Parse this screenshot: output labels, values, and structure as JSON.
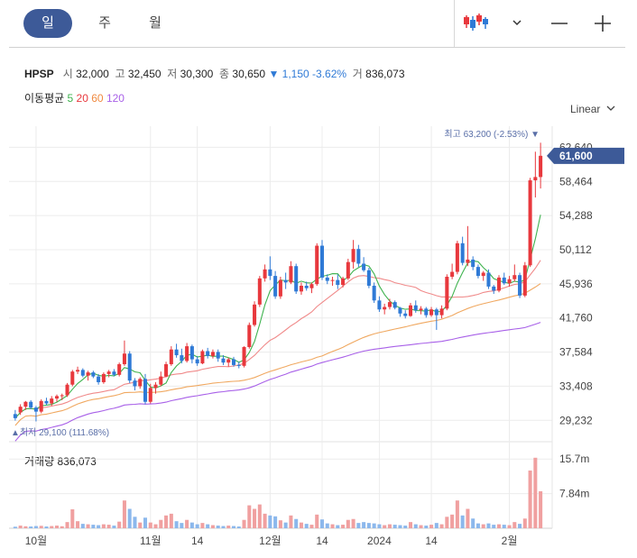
{
  "tabs": {
    "day": "일",
    "week": "주",
    "month": "월"
  },
  "toolbar": {
    "chart_type_icon": "candlestick-icon",
    "dropdown_icon": "chevron-down-icon",
    "zoom_out": "−",
    "zoom_in": "+"
  },
  "quote": {
    "symbol": "HPSP",
    "open_label": "시",
    "open": "32,000",
    "high_label": "고",
    "high": "32,450",
    "low_label": "저",
    "low": "30,300",
    "close_label": "종",
    "close": "30,650",
    "change_arrow": "▼",
    "change": "1,150",
    "change_pct": "-3.62%",
    "volume_label": "거",
    "volume": "836,073"
  },
  "moving_average": {
    "label": "이동평균",
    "p5": "5",
    "p20": "20",
    "p60": "60",
    "p120": "120"
  },
  "scale_mode": "Linear",
  "colors": {
    "up": "#e8383d",
    "down": "#2f7ad6",
    "ma5": "#3fb34f",
    "ma20": "#f08a8a",
    "ma60": "#f0a860",
    "ma120": "#a860e8",
    "accent": "#3d5a98"
  },
  "chart_data": {
    "type": "candlestick",
    "price_axis_ticks": [
      "62,640",
      "58,464",
      "54,288",
      "50,112",
      "45,936",
      "41,760",
      "37,584",
      "33,408",
      "29,232"
    ],
    "price_ylim": [
      27500,
      65000
    ],
    "current_price_label": "61,600",
    "current_price": 61600,
    "max_annotation": "최고 63,200 (-2.53%) ▼",
    "max_price": 63200,
    "min_annotation": "▲최저 29,100 (111.68%)",
    "min_price": 29100,
    "x_labels": [
      "10월",
      "11월",
      "14",
      "12월",
      "14",
      "2024",
      "14",
      "2월"
    ],
    "x_label_index": [
      4,
      26,
      35,
      49,
      59,
      70,
      80,
      95
    ],
    "volume_label": "거래량",
    "volume_value": "836,073",
    "volume_axis_ticks": [
      "15.7m",
      "7.84m"
    ],
    "volume_ylim": [
      0,
      18
    ],
    "candles": [
      [
        30000,
        30500,
        29200,
        29500
      ],
      [
        30200,
        31200,
        29900,
        30900
      ],
      [
        30900,
        31600,
        30500,
        31500
      ],
      [
        31500,
        31700,
        30600,
        30800
      ],
      [
        30800,
        31000,
        29100,
        30300
      ],
      [
        30300,
        31800,
        30100,
        31600
      ],
      [
        31600,
        32000,
        31100,
        31300
      ],
      [
        31300,
        32200,
        31000,
        31900
      ],
      [
        31900,
        32400,
        31500,
        32200
      ],
      [
        32200,
        32500,
        31700,
        32300
      ],
      [
        32300,
        33800,
        32100,
        33600
      ],
      [
        33600,
        35400,
        33400,
        35200
      ],
      [
        35200,
        35800,
        34900,
        35400
      ],
      [
        35400,
        35600,
        34500,
        34700
      ],
      [
        34700,
        35300,
        34100,
        35100
      ],
      [
        35100,
        35300,
        34400,
        34600
      ],
      [
        34600,
        34900,
        33600,
        33900
      ],
      [
        33900,
        35100,
        33700,
        34900
      ],
      [
        34900,
        35400,
        34500,
        35200
      ],
      [
        35200,
        35500,
        34600,
        34800
      ],
      [
        34800,
        36300,
        34600,
        36100
      ],
      [
        36100,
        39000,
        35900,
        37400
      ],
      [
        37400,
        37700,
        33800,
        34100
      ],
      [
        34100,
        34400,
        32900,
        33400
      ],
      [
        33400,
        34500,
        33100,
        34300
      ],
      [
        34300,
        34900,
        31200,
        31500
      ],
      [
        31500,
        33700,
        31300,
        33200
      ],
      [
        33200,
        33900,
        32500,
        33600
      ],
      [
        33600,
        35200,
        33400,
        34600
      ],
      [
        34600,
        36400,
        34500,
        36100
      ],
      [
        36100,
        38300,
        35900,
        37900
      ],
      [
        37900,
        38600,
        36900,
        37200
      ],
      [
        37200,
        38000,
        36200,
        36500
      ],
      [
        36500,
        38700,
        36300,
        38300
      ],
      [
        38300,
        38500,
        36200,
        36700
      ],
      [
        36700,
        37100,
        35900,
        36200
      ],
      [
        36200,
        37900,
        36100,
        37700
      ],
      [
        37700,
        38100,
        36800,
        37100
      ],
      [
        37100,
        37900,
        36800,
        37600
      ],
      [
        37600,
        37900,
        36400,
        36800
      ],
      [
        36800,
        37200,
        36000,
        36300
      ],
      [
        36300,
        36900,
        35800,
        36700
      ],
      [
        36700,
        37000,
        35800,
        36000
      ],
      [
        36000,
        36400,
        35600,
        35900
      ],
      [
        35900,
        38300,
        35700,
        38200
      ],
      [
        38200,
        41200,
        38000,
        40900
      ],
      [
        40900,
        43800,
        40700,
        43400
      ],
      [
        43400,
        46900,
        43100,
        46600
      ],
      [
        46600,
        48300,
        46200,
        47700
      ],
      [
        47700,
        49300,
        46400,
        46900
      ],
      [
        46900,
        47500,
        44100,
        44400
      ],
      [
        44400,
        46800,
        44100,
        46400
      ],
      [
        46400,
        47300,
        45300,
        46100
      ],
      [
        46100,
        48700,
        45900,
        48100
      ],
      [
        48100,
        48400,
        44700,
        45000
      ],
      [
        45000,
        46100,
        44600,
        45700
      ],
      [
        45700,
        46200,
        45100,
        45400
      ],
      [
        45400,
        46100,
        44800,
        45900
      ],
      [
        45900,
        50900,
        45700,
        50600
      ],
      [
        50600,
        51300,
        46400,
        46700
      ],
      [
        46700,
        47100,
        45900,
        46300
      ],
      [
        46300,
        46800,
        45700,
        46400
      ],
      [
        46400,
        47100,
        45300,
        45800
      ],
      [
        45800,
        46800,
        45500,
        46600
      ],
      [
        46600,
        49000,
        46400,
        48600
      ],
      [
        48600,
        51300,
        47800,
        50200
      ],
      [
        50200,
        50700,
        48000,
        48400
      ],
      [
        48400,
        49200,
        47400,
        47600
      ],
      [
        47600,
        47900,
        45400,
        45700
      ],
      [
        45700,
        46100,
        43600,
        43900
      ],
      [
        43900,
        44400,
        42500,
        42800
      ],
      [
        42800,
        43500,
        42200,
        43100
      ],
      [
        43100,
        44100,
        42800,
        43700
      ],
      [
        43700,
        43900,
        42800,
        43000
      ],
      [
        43000,
        43100,
        41900,
        42300
      ],
      [
        42300,
        42700,
        41700,
        42000
      ],
      [
        42000,
        43600,
        41900,
        43300
      ],
      [
        43300,
        43900,
        42400,
        42700
      ],
      [
        42700,
        43200,
        42200,
        42900
      ],
      [
        42900,
        43100,
        41800,
        42100
      ],
      [
        42100,
        43100,
        41900,
        42800
      ],
      [
        42800,
        43000,
        40300,
        42100
      ],
      [
        42100,
        43300,
        41700,
        42900
      ],
      [
        42900,
        47100,
        42700,
        46800
      ],
      [
        46800,
        48400,
        46500,
        47400
      ],
      [
        47400,
        51200,
        47100,
        50900
      ],
      [
        50900,
        51700,
        48200,
        48500
      ],
      [
        48500,
        53000,
        48100,
        48900
      ],
      [
        48900,
        49300,
        47600,
        48000
      ],
      [
        48000,
        48300,
        46600,
        46900
      ],
      [
        46900,
        47500,
        46300,
        47300
      ],
      [
        47300,
        47700,
        45300,
        45600
      ],
      [
        45600,
        45800,
        44700,
        45100
      ],
      [
        45100,
        47000,
        44900,
        46700
      ],
      [
        46700,
        47300,
        45800,
        46000
      ],
      [
        46000,
        46900,
        45600,
        46500
      ],
      [
        46500,
        48300,
        46200,
        47000
      ],
      [
        47000,
        47300,
        44200,
        44500
      ],
      [
        44500,
        48600,
        44300,
        48200
      ],
      [
        48200,
        58900,
        48000,
        58600
      ],
      [
        58600,
        62100,
        56500,
        59000
      ],
      [
        59000,
        63200,
        57600,
        61600
      ]
    ],
    "volumes": [
      0.35,
      0.6,
      0.45,
      0.4,
      0.5,
      0.55,
      0.4,
      0.5,
      0.6,
      0.45,
      1.4,
      4.3,
      1.6,
      1.0,
      0.9,
      0.8,
      0.7,
      0.9,
      0.8,
      0.6,
      1.5,
      6.3,
      4.4,
      2.6,
      1.3,
      2.4,
      1.3,
      0.9,
      1.9,
      2.9,
      3.3,
      1.6,
      1.2,
      1.9,
      1.3,
      0.9,
      1.2,
      0.9,
      0.7,
      0.6,
      0.5,
      0.6,
      0.5,
      0.4,
      1.9,
      5.2,
      4.4,
      5.4,
      3.3,
      2.9,
      2.7,
      1.8,
      1.3,
      2.9,
      2.1,
      1.3,
      1.0,
      0.8,
      3.1,
      2.0,
      1.1,
      0.9,
      0.7,
      0.8,
      1.9,
      2.1,
      1.2,
      1.4,
      1.2,
      1.1,
      0.9,
      0.7,
      0.9,
      0.8,
      0.7,
      0.6,
      1.4,
      0.9,
      0.7,
      0.6,
      0.8,
      1.2,
      0.9,
      2.6,
      3.1,
      6.3,
      2.9,
      4.4,
      2.2,
      1.1,
      0.9,
      1.1,
      0.8,
      0.9,
      0.8,
      0.7,
      1.4,
      1.0,
      2.2,
      13.1,
      16.0,
      8.4
    ]
  }
}
